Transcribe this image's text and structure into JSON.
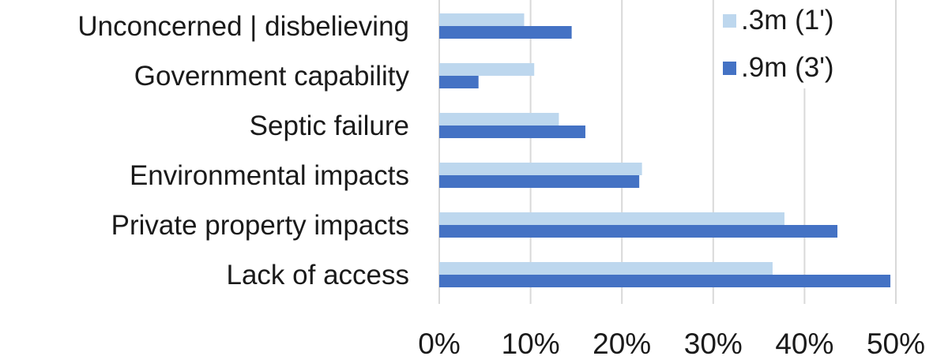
{
  "chart_data": {
    "type": "bar",
    "orientation": "horizontal",
    "categories": [
      "Unconcerned | disbelieving",
      "Government capability",
      "Septic failure",
      "Environmental impacts",
      "Private property impacts",
      "Lack of access"
    ],
    "series": [
      {
        "name": ".3m (1')",
        "color": "#bdd7ee",
        "values": [
          9.3,
          10.4,
          13.1,
          22.2,
          37.8,
          36.5
        ]
      },
      {
        "name": ".9m (3')",
        "color": "#4472c4",
        "values": [
          14.5,
          4.3,
          16.0,
          21.9,
          43.6,
          49.4
        ]
      }
    ],
    "xlim": [
      0,
      50
    ],
    "xticks": [
      "0%",
      "10%",
      "20%",
      "30%",
      "40%",
      "50%"
    ],
    "grid": true,
    "legend_position": "top-right",
    "title": "",
    "xlabel": "",
    "ylabel": ""
  }
}
